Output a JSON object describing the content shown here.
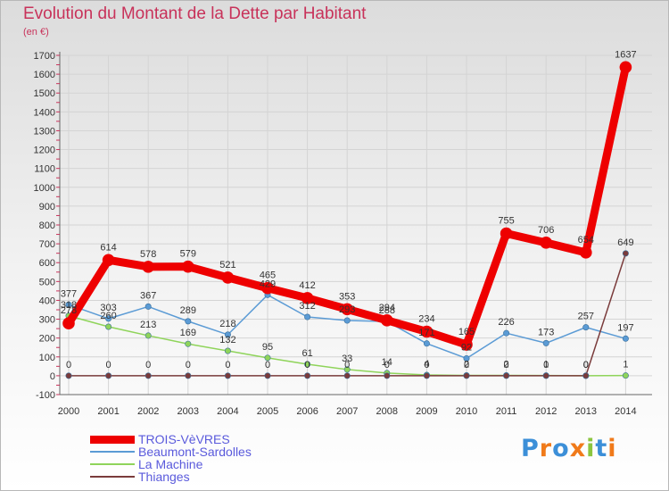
{
  "chart_data": {
    "type": "line",
    "title": "Evolution du Montant de la Dette par Habitant",
    "subtitle": "(en €)",
    "xlabel": "",
    "ylabel": "",
    "ylim": [
      -100,
      1700
    ],
    "yticks": [
      -100,
      0,
      100,
      200,
      300,
      400,
      500,
      600,
      700,
      800,
      900,
      1000,
      1100,
      1200,
      1300,
      1400,
      1500,
      1600,
      1700
    ],
    "x": [
      "2000",
      "2001",
      "2002",
      "2003",
      "2004",
      "2005",
      "2006",
      "2007",
      "2008",
      "2009",
      "2010",
      "2011",
      "2012",
      "2013",
      "2014"
    ],
    "grid": true,
    "legend_position": "bottom-left",
    "series": [
      {
        "name": "Beaumont-Sardolles",
        "color": "#5b9bd5",
        "values": [
          377,
          303,
          367,
          289,
          218,
          429,
          312,
          293,
          288,
          171,
          92,
          226,
          173,
          257,
          197
        ],
        "labels": [
          "377",
          "303",
          "367",
          "289",
          "218",
          "429",
          "312",
          "293",
          "288",
          "171",
          "92",
          "226",
          "173",
          "257",
          "197"
        ]
      },
      {
        "name": "La Machine",
        "color": "#8fd45a",
        "values": [
          318,
          260,
          213,
          169,
          132,
          95,
          61,
          33,
          14,
          4,
          2,
          2,
          1,
          0,
          1
        ],
        "labels": [
          "318",
          "260",
          "213",
          "169",
          "132",
          "95",
          "61",
          "33",
          "14",
          "4",
          "2",
          "2",
          "1",
          "0",
          "1"
        ]
      },
      {
        "name": "Thianges",
        "color": "#7a3b3b",
        "values": [
          0,
          0,
          0,
          0,
          0,
          0,
          0,
          0,
          0,
          0,
          0,
          0,
          0,
          0,
          649
        ],
        "labels": [
          "0",
          "0",
          "0",
          "0",
          "0",
          "0",
          "0",
          "0",
          "0",
          "0",
          "0",
          "0",
          "0",
          "0",
          "649"
        ]
      },
      {
        "name": "TROIS-VèVRES",
        "color": "#ee0000",
        "values": [
          278,
          614,
          578,
          579,
          521,
          465,
          412,
          353,
          294,
          234,
          165,
          755,
          706,
          654,
          1637
        ],
        "labels": [
          "278",
          "614",
          "578",
          "579",
          "521",
          "465",
          "412",
          "353",
          "294",
          "234",
          "165",
          "755",
          "706",
          "654",
          "1637"
        ]
      }
    ],
    "legend_order": [
      "TROIS-VèVRES",
      "Beaumont-Sardolles",
      "La Machine",
      "Thianges"
    ]
  },
  "brand": {
    "letters": [
      "P",
      "r",
      "o",
      "x",
      "i",
      "t",
      "i"
    ],
    "colors": [
      "#3c8fd8",
      "#f07a1a",
      "#3c8fd8",
      "#f07a1a",
      "#8bc53f",
      "#3c8fd8",
      "#f07a1a"
    ]
  }
}
